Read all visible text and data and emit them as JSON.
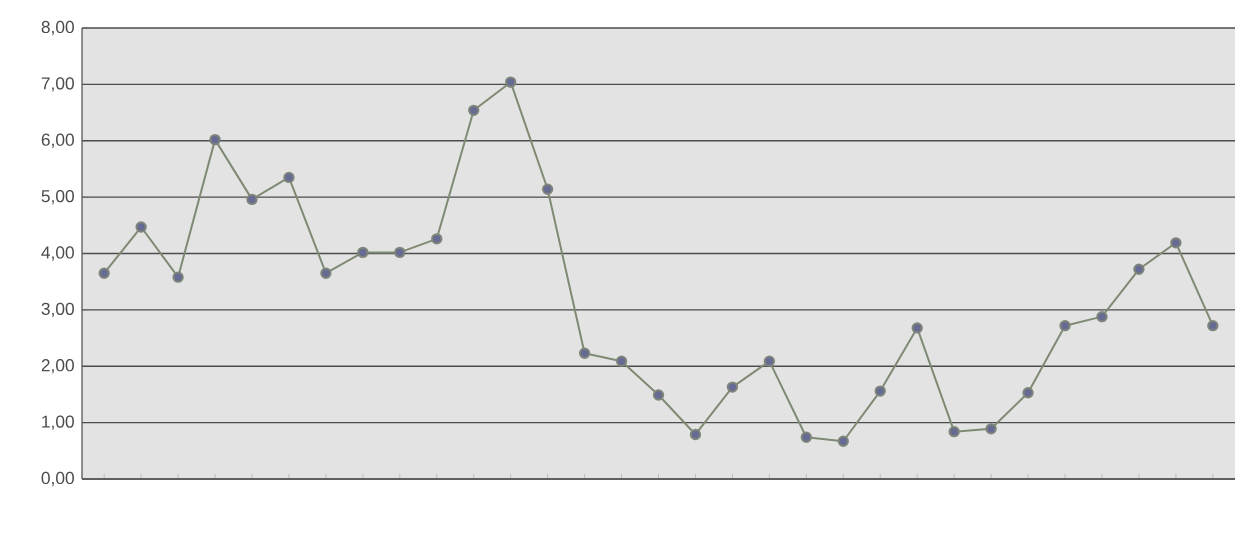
{
  "chart_data": {
    "type": "line",
    "categories": [
      null,
      null,
      null,
      null,
      null,
      null,
      null,
      null,
      null,
      null,
      null,
      null,
      null,
      null,
      null,
      null,
      null,
      null,
      null,
      null,
      null,
      null,
      null,
      null,
      null,
      null,
      null,
      null,
      null,
      null,
      null
    ],
    "series": [
      {
        "color": "#7f8a74",
        "values": [
          3.65,
          4.47,
          3.58,
          6.02,
          4.96,
          5.35,
          3.65,
          4.02,
          4.02,
          4.26,
          6.54,
          7.04,
          5.14,
          2.23,
          2.09,
          1.49,
          0.79,
          1.63,
          2.09,
          0.74,
          0.67,
          1.56,
          2.68,
          0.84,
          0.89,
          1.53,
          2.72,
          2.88,
          3.72,
          4.19,
          2.72
        ]
      }
    ],
    "ylim": [
      0,
      8
    ],
    "yticks": [
      {
        "value": 0,
        "label": "0,00"
      },
      {
        "value": 1,
        "label": "1,00"
      },
      {
        "value": 2,
        "label": "2,00"
      },
      {
        "value": 3,
        "label": "3,00"
      },
      {
        "value": 4,
        "label": "4,00"
      },
      {
        "value": 5,
        "label": "5,00"
      },
      {
        "value": 6,
        "label": "6,00"
      },
      {
        "value": 7,
        "label": "7,00"
      },
      {
        "value": 8,
        "label": "8,00"
      }
    ],
    "grid": "y",
    "marker": "circle",
    "line_style": "solid"
  }
}
